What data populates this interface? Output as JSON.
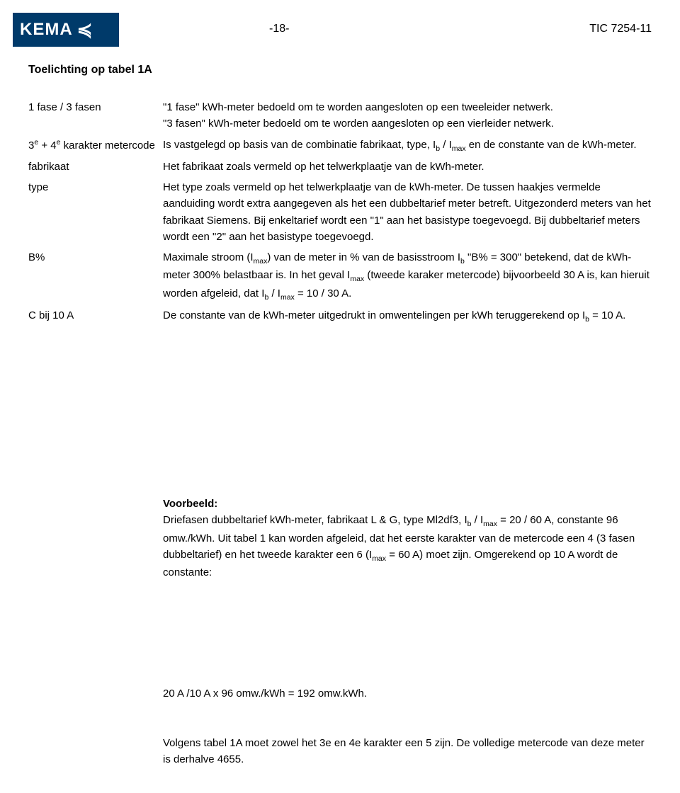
{
  "logo": {
    "brand": "KEMA",
    "glyph": "≼"
  },
  "header": {
    "page": "-18-",
    "doc": "TIC 7254-11"
  },
  "title": "Toelichting op tabel 1A",
  "defs": [
    {
      "term": "1 fase / 3 fasen",
      "desc": "\"1 fase\" kWh-meter bedoeld om te worden aangesloten op een tweeleider netwerk.\n\"3 fasen\" kWh-meter bedoeld om te worden aangesloten op een vierleider netwerk."
    },
    {
      "term_html": "3<sup>e</sup> + 4<sup>e</sup> karakter metercode",
      "desc_html": "Is vastgelegd op basis van de combinatie fabrikaat, type, I<sub>b</sub> / I<sub>max</sub> en de constante van de kWh-meter."
    },
    {
      "term": "fabrikaat",
      "desc": "Het fabrikaat zoals vermeld op het telwerkplaatje van de kWh-meter."
    },
    {
      "term": "type",
      "desc": "Het type zoals vermeld op het telwerkplaatje van de kWh-meter. De tussen haakjes vermelde aanduiding wordt extra aangegeven als het een dubbeltarief meter betreft. Uitgezonderd meters van het fabrikaat Siemens. Bij enkeltarief wordt een \"1\" aan het basistype toegevoegd. Bij dubbeltarief meters wordt een \"2\" aan het basistype toegevoegd."
    },
    {
      "term": "B%",
      "desc_html": "Maximale stroom (I<sub>max</sub>) van de meter in % van de basisstroom I<sub>b</sub> \"B% = 300\" betekend, dat de kWh-meter 300% belastbaar is. In het geval I<sub>max</sub> (tweede karaker metercode) bijvoorbeeld 30 A is, kan hieruit worden afgeleid, dat I<sub>b</sub> / I<sub>max</sub> = 10 / 30 A."
    },
    {
      "term": "C bij 10 A",
      "desc_html": "De constante van de kWh-meter uitgedrukt in omwentelingen per kWh teruggerekend op I<sub>b</sub> = 10 A."
    }
  ],
  "example": {
    "label": "Voorbeeld:",
    "body_html": "Driefasen dubbeltarief kWh-meter, fabrikaat L & G, type Ml2df3, I<sub>b</sub> / I<sub>max</sub> = 20 / 60 A, constante 96 omw./kWh. Uit tabel 1 kan worden afgeleid, dat het eerste karakter van de metercode een 4 (3 fasen dubbeltarief) en het tweede karakter een 6 (I<sub>max</sub> = 60 A) moet zijn. Omgerekend op 10 A wordt de constante:"
  },
  "calc": "20 A /10 A x 96 omw./kWh = 192 omw.kWh.",
  "tail": "Volgens tabel 1A moet zowel het 3e en 4e karakter een 5 zijn. De volledige metercode van deze meter is derhalve 4655."
}
